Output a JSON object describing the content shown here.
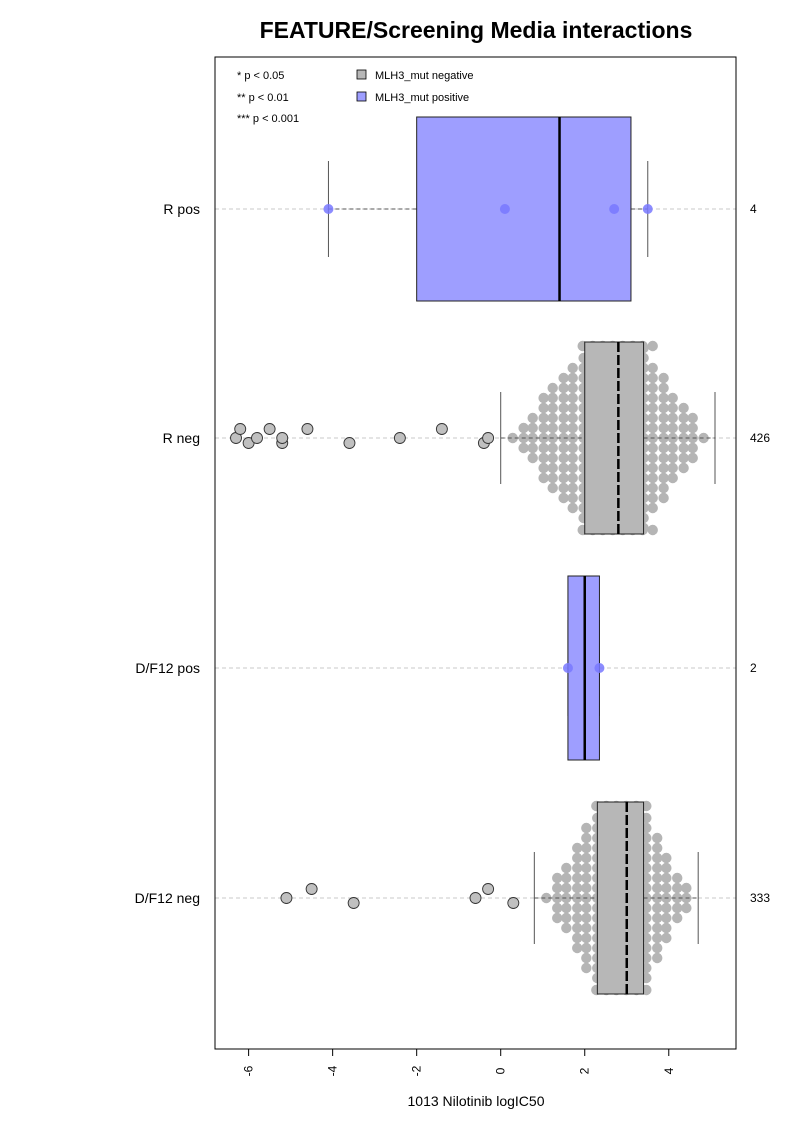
{
  "chart_data": {
    "type": "boxplot",
    "title": "FEATURE/Screening Media interactions",
    "xlabel": "1013 Nilotinib logIC50",
    "xlim": [
      -6.8,
      5.6
    ],
    "x_ticks": [
      "-6",
      "-4",
      "-2",
      "0",
      "2",
      "4"
    ],
    "x_tick_values": [
      -6,
      -4,
      -2,
      0,
      2,
      4
    ],
    "orientation": "horizontal",
    "grid": "dashed horizontal lines per group",
    "legend_position": "top-left",
    "significance_legend": [
      "* p < 0.05",
      "** p < 0.01",
      "*** p < 0.001"
    ],
    "legend": [
      {
        "label": "MLH3_mut negative",
        "color": "#b7b7b7"
      },
      {
        "label": "MLH3_mut positive",
        "color": "#9e9eff"
      }
    ],
    "groups": [
      {
        "label": "R pos",
        "n": "4",
        "mutation": "positive",
        "whisker_low": -4.1,
        "q1": -2.0,
        "median": 1.4,
        "q3": 3.1,
        "whisker_high": 3.5,
        "points": [
          -4.1,
          0.1,
          2.7,
          3.5
        ]
      },
      {
        "label": "R neg",
        "n": "426",
        "mutation": "negative",
        "whisker_low": 0.0,
        "q1": 2.0,
        "median": 2.8,
        "q3": 3.4,
        "whisker_high": 5.1,
        "outliers": [
          -6.3,
          -6.2,
          -6.0,
          -5.8,
          -5.5,
          -5.2,
          -5.2,
          -4.6,
          -3.6,
          -2.4,
          -1.4,
          -0.4,
          -0.3
        ]
      },
      {
        "label": "D/F12 pos",
        "n": "2",
        "mutation": "positive",
        "whisker_low": 1.6,
        "q1": 1.6,
        "median": 2.0,
        "q3": 2.35,
        "whisker_high": 2.35,
        "points": [
          1.6,
          2.35
        ]
      },
      {
        "label": "D/F12 neg",
        "n": "333",
        "mutation": "negative",
        "whisker_low": 0.8,
        "q1": 2.3,
        "median": 3.0,
        "q3": 3.4,
        "whisker_high": 4.7,
        "outliers": [
          -5.1,
          -4.5,
          -3.5,
          -0.6,
          -0.3,
          0.3
        ]
      }
    ],
    "colors": {
      "negative_fill": "#b7b7b7",
      "negative_point": "#b5b5b5",
      "positive_fill": "#9e9eff",
      "positive_point": "#7878ff",
      "grid": "#c8c8c8"
    }
  }
}
